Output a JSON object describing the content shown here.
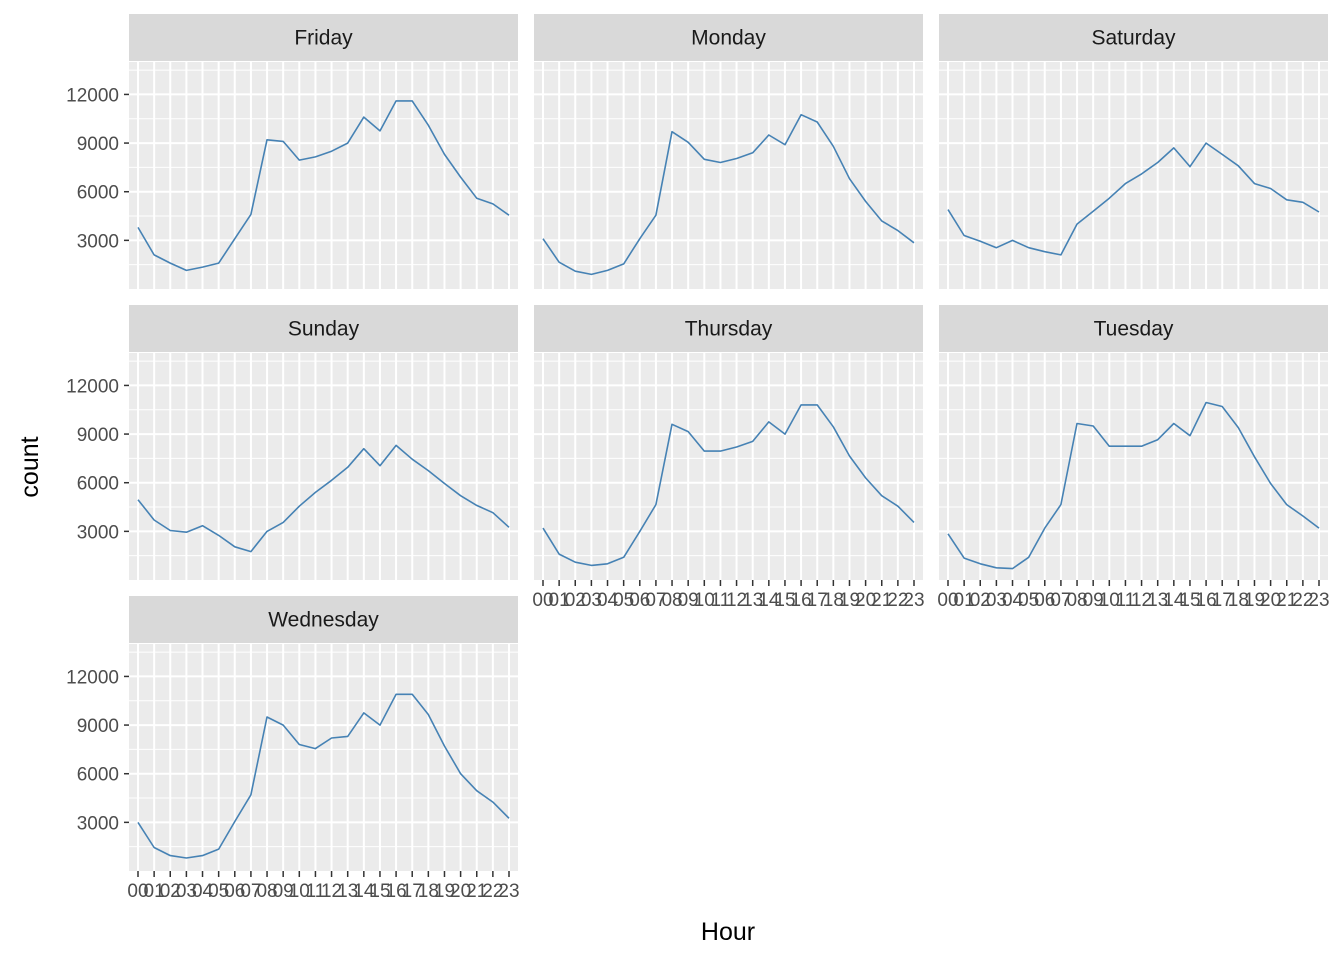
{
  "chart_data": {
    "type": "line",
    "facet_layout": "wrap",
    "xlabel": "Hour",
    "ylabel": "count",
    "x": [
      "00",
      "01",
      "02",
      "03",
      "04",
      "05",
      "06",
      "07",
      "08",
      "09",
      "10",
      "11",
      "12",
      "13",
      "14",
      "15",
      "16",
      "17",
      "18",
      "19",
      "20",
      "21",
      "22",
      "23"
    ],
    "ylim": [
      0,
      14000
    ],
    "yticks": [
      3000,
      6000,
      9000,
      12000
    ],
    "grid": true,
    "line_color": "#4682b4",
    "panel_background": "#ebebeb",
    "strip_background": "#d9d9d9",
    "series": [
      {
        "name": "Friday",
        "values": [
          3800,
          2100,
          1600,
          1150,
          1350,
          1600,
          3100,
          4600,
          9200,
          9100,
          7950,
          8150,
          8500,
          9000,
          10600,
          9750,
          11600,
          11600,
          10100,
          8300,
          6900,
          5600,
          5250,
          4550
        ]
      },
      {
        "name": "Monday",
        "values": [
          3100,
          1650,
          1100,
          900,
          1150,
          1550,
          3100,
          4550,
          9700,
          9050,
          8000,
          7800,
          8050,
          8400,
          9500,
          8900,
          10750,
          10300,
          8800,
          6800,
          5400,
          4200,
          3600,
          2850
        ]
      },
      {
        "name": "Saturday",
        "values": [
          4900,
          3300,
          2950,
          2550,
          3000,
          2550,
          2300,
          2100,
          4000,
          4800,
          5600,
          6500,
          7100,
          7800,
          8700,
          7550,
          9000,
          8300,
          7600,
          6500,
          6200,
          5500,
          5350,
          4750
        ]
      },
      {
        "name": "Sunday",
        "values": [
          4950,
          3700,
          3050,
          2950,
          3350,
          2750,
          2050,
          1750,
          3000,
          3550,
          4550,
          5400,
          6150,
          6950,
          8100,
          7050,
          8300,
          7450,
          6750,
          5950,
          5200,
          4600,
          4150,
          3250
        ]
      },
      {
        "name": "Thursday",
        "values": [
          3200,
          1600,
          1100,
          900,
          1000,
          1400,
          3000,
          4650,
          9600,
          9150,
          7950,
          7950,
          8200,
          8550,
          9750,
          9000,
          10800,
          10800,
          9450,
          7650,
          6300,
          5200,
          4550,
          3550
        ]
      },
      {
        "name": "Tuesday",
        "values": [
          2850,
          1350,
          1000,
          750,
          700,
          1400,
          3200,
          4650,
          9650,
          9500,
          8250,
          8250,
          8250,
          8650,
          9650,
          8900,
          10950,
          10700,
          9400,
          7600,
          5950,
          4650,
          3950,
          3200
        ]
      },
      {
        "name": "Wednesday",
        "values": [
          3000,
          1450,
          950,
          800,
          950,
          1350,
          3050,
          4700,
          9500,
          9000,
          7800,
          7550,
          8200,
          8300,
          9750,
          9000,
          10900,
          10900,
          9650,
          7700,
          6000,
          4950,
          4250,
          3250
        ]
      }
    ]
  }
}
